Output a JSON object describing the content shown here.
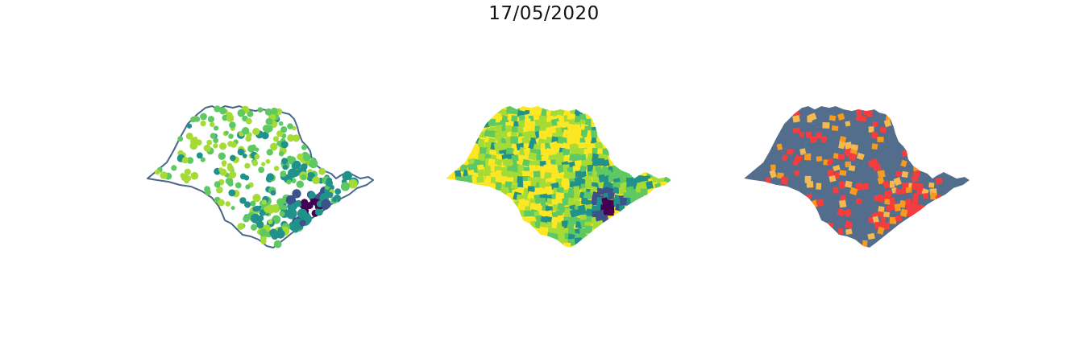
{
  "figure": {
    "title": "17/05/2020"
  },
  "colors": {
    "outline": "#4a6788",
    "viridis": [
      "#440154",
      "#3b528b",
      "#21918c",
      "#5ec962",
      "#a5db36",
      "#fde725"
    ],
    "classes": {
      "base": "#536d8c",
      "red": "#f63c3c",
      "orange": "#f89a1c",
      "amber": "#f5b94e"
    }
  },
  "panels": [
    {
      "name": "map-bubbles",
      "kind": "proportional-symbols"
    },
    {
      "name": "map-choropleth",
      "kind": "choropleth-viridis"
    },
    {
      "name": "map-classes",
      "kind": "categorical"
    }
  ]
}
